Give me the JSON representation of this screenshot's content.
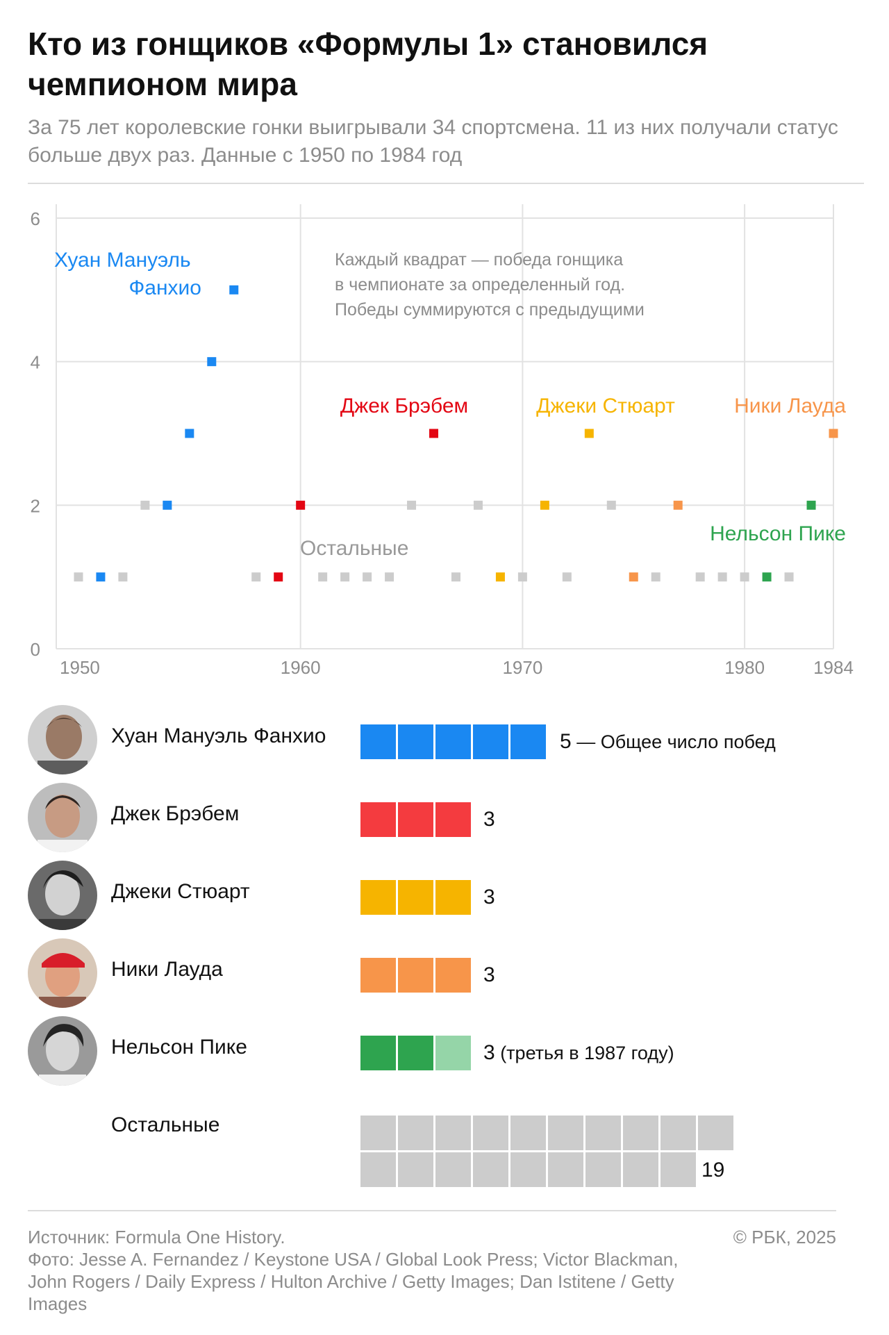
{
  "header": {
    "title": "Кто из гонщиков «Формулы 1» становился чемпионом мира",
    "subtitle": "За 75 лет королевские гонки выигрывали 34 спортсмена. 11 из них получали статус больше двух раз. Данные с 1950 по 1984 год"
  },
  "colors": {
    "fangio": "#1a88f2",
    "brabham": "#e30613",
    "stewart": "#f6b400",
    "lauda": "#f7954a",
    "piquet": "#2ea44f",
    "others": "#cccccc",
    "grid": "#e2e2e2",
    "axis_text": "#8c8c8c"
  },
  "chart_data": {
    "type": "scatter",
    "xlabel": "",
    "ylabel": "",
    "xlim": [
      1949,
      1984
    ],
    "ylim": [
      0,
      6
    ],
    "x_ticks": [
      1950,
      1960,
      1970,
      1980,
      1984
    ],
    "y_ticks": [
      0,
      2,
      4,
      6
    ],
    "grid": true,
    "annotation": [
      "Каждый квадрат — победа гонщика",
      "в чемпионате за определенный год.",
      "Победы суммируются с предыдущими"
    ],
    "series": [
      {
        "name": "Хуан Мануэль Фанхио",
        "label_lines": [
          "Хуан Мануэль",
          "Фанхио"
        ],
        "color": "#1a88f2",
        "points": [
          {
            "x": 1951,
            "y": 1
          },
          {
            "x": 1954,
            "y": 2
          },
          {
            "x": 1955,
            "y": 3
          },
          {
            "x": 1956,
            "y": 4
          },
          {
            "x": 1957,
            "y": 5
          }
        ]
      },
      {
        "name": "Джек Брэбем",
        "label_lines": [
          "Джек Брэбем"
        ],
        "color": "#e30613",
        "points": [
          {
            "x": 1959,
            "y": 1
          },
          {
            "x": 1960,
            "y": 2
          },
          {
            "x": 1966,
            "y": 3
          }
        ]
      },
      {
        "name": "Джеки Стюарт",
        "label_lines": [
          "Джеки Стюарт"
        ],
        "color": "#f6b400",
        "points": [
          {
            "x": 1969,
            "y": 1
          },
          {
            "x": 1971,
            "y": 2
          },
          {
            "x": 1973,
            "y": 3
          }
        ]
      },
      {
        "name": "Ники Лауда",
        "label_lines": [
          "Ники Лауда"
        ],
        "color": "#f7954a",
        "points": [
          {
            "x": 1975,
            "y": 1
          },
          {
            "x": 1977,
            "y": 2
          },
          {
            "x": 1984,
            "y": 3
          }
        ]
      },
      {
        "name": "Нельсон Пике",
        "label_lines": [
          "Нельсон Пике"
        ],
        "color": "#2ea44f",
        "points": [
          {
            "x": 1981,
            "y": 1
          },
          {
            "x": 1983,
            "y": 2
          }
        ]
      },
      {
        "name": "Остальные",
        "label_lines": [
          "Остальные"
        ],
        "color": "#cccccc",
        "points": [
          {
            "x": 1950,
            "y": 1
          },
          {
            "x": 1952,
            "y": 1
          },
          {
            "x": 1953,
            "y": 2
          },
          {
            "x": 1958,
            "y": 1
          },
          {
            "x": 1961,
            "y": 1
          },
          {
            "x": 1962,
            "y": 1
          },
          {
            "x": 1963,
            "y": 1
          },
          {
            "x": 1964,
            "y": 1
          },
          {
            "x": 1965,
            "y": 2
          },
          {
            "x": 1967,
            "y": 1
          },
          {
            "x": 1968,
            "y": 2
          },
          {
            "x": 1970,
            "y": 1
          },
          {
            "x": 1972,
            "y": 1
          },
          {
            "x": 1974,
            "y": 2
          },
          {
            "x": 1976,
            "y": 1
          },
          {
            "x": 1978,
            "y": 1
          },
          {
            "x": 1979,
            "y": 1
          },
          {
            "x": 1980,
            "y": 1
          },
          {
            "x": 1982,
            "y": 1
          }
        ]
      }
    ]
  },
  "legend": {
    "rows": [
      {
        "name": "Хуан Мануэль Фанхио",
        "total": "5",
        "note": " — Общее число побед",
        "color": "#1a88f2",
        "wins": 5,
        "extra": 0,
        "extra_color": ""
      },
      {
        "name": "Джек Брэбем",
        "total": "3",
        "note": "",
        "color": "#f43b3f",
        "wins": 3,
        "extra": 0,
        "extra_color": ""
      },
      {
        "name": "Джеки Стюарт",
        "total": "3",
        "note": "",
        "color": "#f6b400",
        "wins": 3,
        "extra": 0,
        "extra_color": ""
      },
      {
        "name": "Ники Лауда",
        "total": "3",
        "note": "",
        "color": "#f7954a",
        "wins": 3,
        "extra": 0,
        "extra_color": ""
      },
      {
        "name": "Нельсон Пике",
        "total": "3",
        "note": " (третья в 1987 году)",
        "color": "#2ea44f",
        "wins": 2,
        "extra": 1,
        "extra_color": "#95d5a8"
      }
    ],
    "others": {
      "name": "Остальные",
      "total": "19",
      "color": "#cccccc",
      "wins": 19
    }
  },
  "footer": {
    "source": "Источник: Formula One History.",
    "photo": "Фото: Jesse A. Fernandez / Keystone USA / Global Look Press; Victor Blackman, John Rogers / Daily Express / Hulton Archive / Getty Images; Dan Istitene / Getty Images",
    "copyright": "© РБК, 2025"
  }
}
